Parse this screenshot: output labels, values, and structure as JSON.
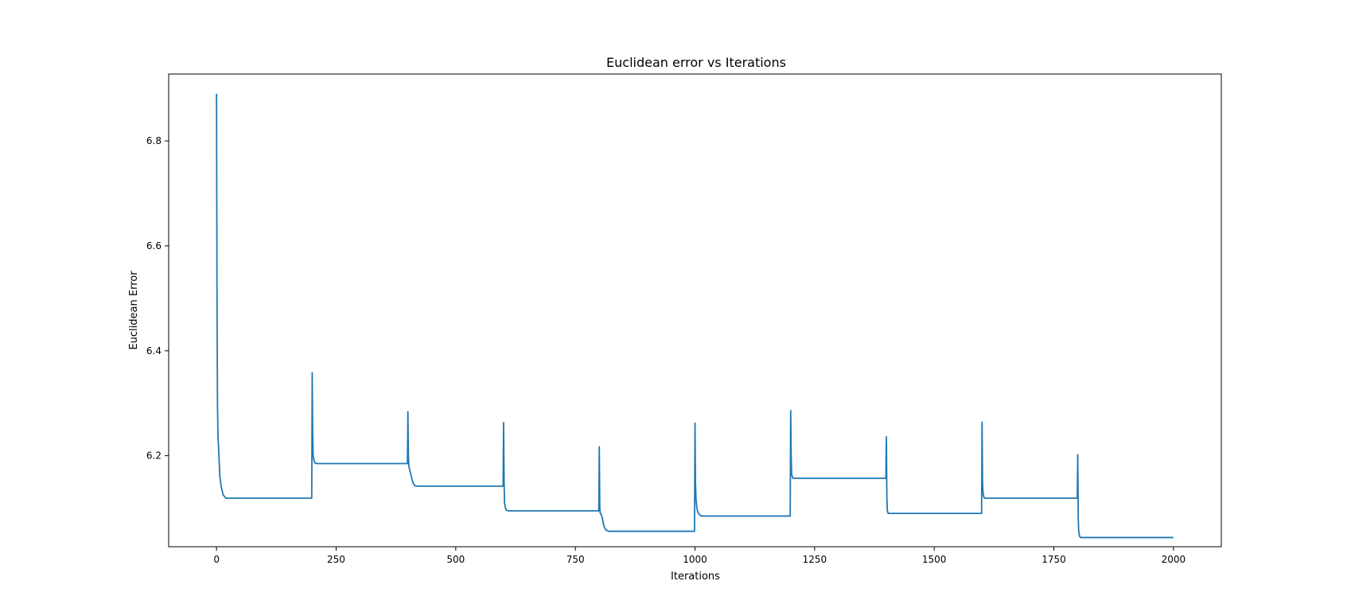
{
  "chart_data": {
    "type": "line",
    "title": "Euclidean error vs Iterations",
    "xlabel": "Iterations",
    "ylabel": "Euclidean Error",
    "xlim": [
      -100,
      2100
    ],
    "ylim": [
      6.0265,
      6.9275
    ],
    "xticks": [
      0,
      250,
      500,
      750,
      1000,
      1250,
      1500,
      1750,
      2000
    ],
    "yticks": [
      6.2,
      6.4,
      6.6,
      6.8
    ],
    "xtick_labels": [
      "0",
      "250",
      "500",
      "750",
      "1000",
      "1250",
      "1500",
      "1750",
      "2000"
    ],
    "ytick_labels": [
      "6.2",
      "6.4",
      "6.6",
      "6.8"
    ],
    "grid": false,
    "line_color": "#1f77b4",
    "series": [
      {
        "x": [
          0,
          1,
          2,
          3,
          5,
          7,
          10,
          14,
          20,
          199,
          200,
          201,
          202,
          204,
          206,
          210,
          399,
          400,
          401,
          402,
          404,
          406,
          410,
          414,
          420,
          599,
          600,
          601,
          602,
          604,
          606,
          610,
          799,
          800,
          801,
          802,
          804,
          806,
          810,
          814,
          820,
          999,
          1000,
          1001,
          1002,
          1004,
          1006,
          1010,
          1014,
          1199,
          1200,
          1201,
          1202,
          1204,
          1206,
          1399,
          1400,
          1401,
          1402,
          1404,
          1406,
          1599,
          1600,
          1601,
          1602,
          1604,
          1606,
          1799,
          1800,
          1801,
          1802,
          1804,
          1806,
          2000
        ],
        "y": [
          6.89,
          6.5,
          6.3,
          6.24,
          6.2,
          6.16,
          6.14,
          6.125,
          6.119,
          6.119,
          6.358,
          6.24,
          6.2,
          6.19,
          6.186,
          6.185,
          6.185,
          6.284,
          6.2,
          6.18,
          6.172,
          6.165,
          6.15,
          6.143,
          6.142,
          6.142,
          6.263,
          6.15,
          6.11,
          6.1,
          6.096,
          6.095,
          6.095,
          6.217,
          6.1,
          6.09,
          6.088,
          6.082,
          6.065,
          6.058,
          6.056,
          6.056,
          6.262,
          6.15,
          6.12,
          6.1,
          6.092,
          6.087,
          6.085,
          6.085,
          6.286,
          6.2,
          6.165,
          6.158,
          6.157,
          6.157,
          6.236,
          6.12,
          6.095,
          6.09,
          6.09,
          6.09,
          6.264,
          6.15,
          6.13,
          6.12,
          6.119,
          6.119,
          6.202,
          6.08,
          6.055,
          6.046,
          6.044,
          6.044
        ]
      }
    ]
  }
}
